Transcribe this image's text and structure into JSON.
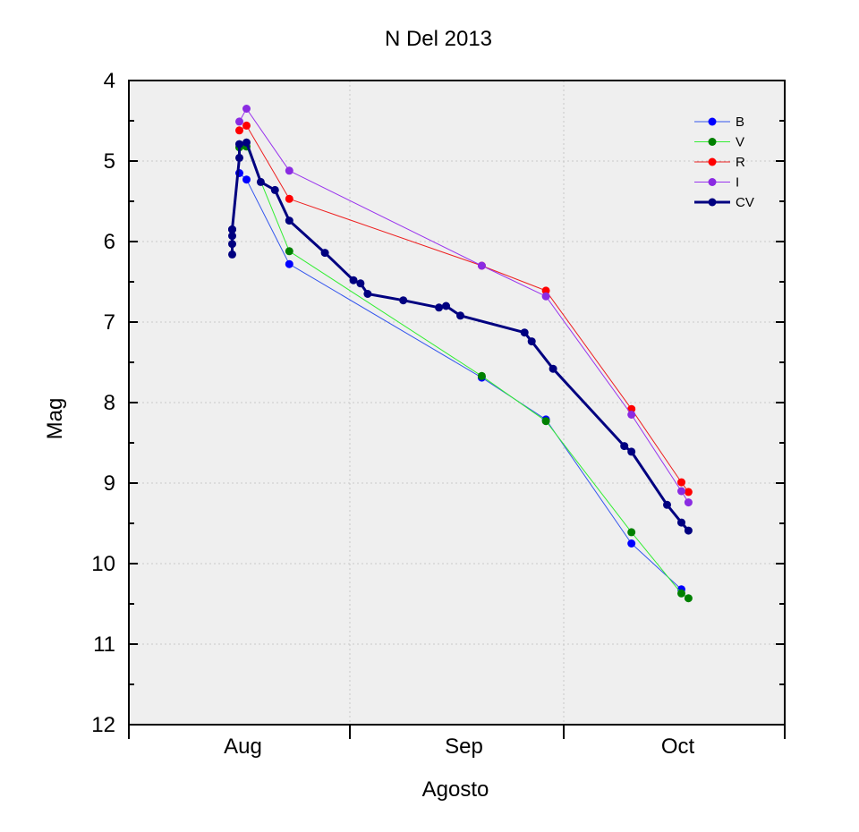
{
  "chart_data": {
    "type": "line",
    "title": "N Del 2013",
    "xlabel": "Agosto",
    "ylabel": "Mag",
    "x_unit": "date",
    "xlim": [
      "2013-07-16",
      "2013-10-16"
    ],
    "ylim": [
      12,
      4
    ],
    "y_inverted": true,
    "y_major_ticks": [
      4,
      5,
      6,
      7,
      8,
      9,
      10,
      11,
      12
    ],
    "x_ticks": [
      {
        "label": "Aug",
        "x": "2013-08-01"
      },
      {
        "label": "Sep",
        "x": "2013-09-01"
      },
      {
        "label": "Oct",
        "x": "2013-10-01"
      }
    ],
    "x_major_tick_marks": [
      "2013-07-16",
      "2013-08-16",
      "2013-09-15",
      "2013-10-16"
    ],
    "grid": true,
    "background": "#efefef",
    "legend": {
      "position": "top-right"
    },
    "series": [
      {
        "name": "B",
        "color": "#0000ff",
        "line_color": "#3355ee",
        "thick": false,
        "points": [
          {
            "x": "2013-07-31 12:00",
            "y": 5.15
          },
          {
            "x": "2013-08-01 12:00",
            "y": 5.23
          },
          {
            "x": "2013-08-07 12:00",
            "y": 6.28
          },
          {
            "x": "2013-09-03 12:00",
            "y": 7.69
          },
          {
            "x": "2013-09-12 12:00",
            "y": 8.21
          },
          {
            "x": "2013-09-24 12:00",
            "y": 9.75
          },
          {
            "x": "2013-10-01 12:00",
            "y": 10.32
          }
        ]
      },
      {
        "name": "V",
        "color": "#008000",
        "line_color": "#33ee33",
        "thick": false,
        "points": [
          {
            "x": "2013-07-31 12:00",
            "y": 4.83
          },
          {
            "x": "2013-08-01 12:00",
            "y": 4.82
          },
          {
            "x": "2013-08-07 12:00",
            "y": 6.12
          },
          {
            "x": "2013-09-03 12:00",
            "y": 7.67
          },
          {
            "x": "2013-09-12 12:00",
            "y": 8.23
          },
          {
            "x": "2013-09-24 12:00",
            "y": 9.61
          },
          {
            "x": "2013-10-01 12:00",
            "y": 10.37
          },
          {
            "x": "2013-10-02 12:00",
            "y": 10.43
          }
        ]
      },
      {
        "name": "R",
        "color": "#ff0000",
        "line_color": "#ee2020",
        "thick": false,
        "points": [
          {
            "x": "2013-07-31 12:00",
            "y": 4.62
          },
          {
            "x": "2013-08-01 12:00",
            "y": 4.56
          },
          {
            "x": "2013-08-07 12:00",
            "y": 5.47
          },
          {
            "x": "2013-09-03 12:00",
            "y": 6.3
          },
          {
            "x": "2013-09-12 12:00",
            "y": 6.61
          },
          {
            "x": "2013-09-24 12:00",
            "y": 8.08
          },
          {
            "x": "2013-10-01 12:00",
            "y": 8.99
          },
          {
            "x": "2013-10-02 12:00",
            "y": 9.11
          }
        ]
      },
      {
        "name": "I",
        "color": "#8a2be2",
        "line_color": "#9933ee",
        "thick": false,
        "points": [
          {
            "x": "2013-07-31 12:00",
            "y": 4.51
          },
          {
            "x": "2013-08-01 12:00",
            "y": 4.35
          },
          {
            "x": "2013-08-07 12:00",
            "y": 5.12
          },
          {
            "x": "2013-09-03 12:00",
            "y": 6.3
          },
          {
            "x": "2013-09-12 12:00",
            "y": 6.68
          },
          {
            "x": "2013-09-24 12:00",
            "y": 8.15
          },
          {
            "x": "2013-10-01 12:00",
            "y": 9.1
          },
          {
            "x": "2013-10-02 12:00",
            "y": 9.24
          }
        ]
      },
      {
        "name": "CV",
        "color": "#000080",
        "line_color": "#000080",
        "thick": true,
        "points": [
          {
            "x": "2013-07-30 12:00",
            "y": 6.16
          },
          {
            "x": "2013-07-30 12:00",
            "y": 6.03
          },
          {
            "x": "2013-07-30 12:00",
            "y": 5.93
          },
          {
            "x": "2013-07-30 12:00",
            "y": 5.85
          },
          {
            "x": "2013-07-30 12:00",
            "y": 5.85
          },
          {
            "x": "2013-07-30 12:00",
            "y": 5.85
          },
          {
            "x": "2013-07-31 12:00",
            "y": 4.96
          },
          {
            "x": "2013-07-31 12:00",
            "y": 4.79
          },
          {
            "x": "2013-08-01 12:00",
            "y": 4.77
          },
          {
            "x": "2013-08-03 12:00",
            "y": 5.26
          },
          {
            "x": "2013-08-05 12:00",
            "y": 5.36
          },
          {
            "x": "2013-08-07 12:00",
            "y": 5.74
          },
          {
            "x": "2013-08-12 12:00",
            "y": 6.14
          },
          {
            "x": "2013-08-16 12:00",
            "y": 6.48
          },
          {
            "x": "2013-08-17 12:00",
            "y": 6.52
          },
          {
            "x": "2013-08-18 12:00",
            "y": 6.65
          },
          {
            "x": "2013-08-23 12:00",
            "y": 6.73
          },
          {
            "x": "2013-08-28 12:00",
            "y": 6.82
          },
          {
            "x": "2013-08-29 12:00",
            "y": 6.8
          },
          {
            "x": "2013-08-31 12:00",
            "y": 6.92
          },
          {
            "x": "2013-09-09 12:00",
            "y": 7.13
          },
          {
            "x": "2013-09-10 12:00",
            "y": 7.24
          },
          {
            "x": "2013-09-13 12:00",
            "y": 7.58
          },
          {
            "x": "2013-09-23 12:00",
            "y": 8.54
          },
          {
            "x": "2013-09-24 12:00",
            "y": 8.61
          },
          {
            "x": "2013-09-29 12:00",
            "y": 9.27
          },
          {
            "x": "2013-10-01 12:00",
            "y": 9.49
          },
          {
            "x": "2013-10-02 12:00",
            "y": 9.59
          }
        ]
      }
    ]
  }
}
